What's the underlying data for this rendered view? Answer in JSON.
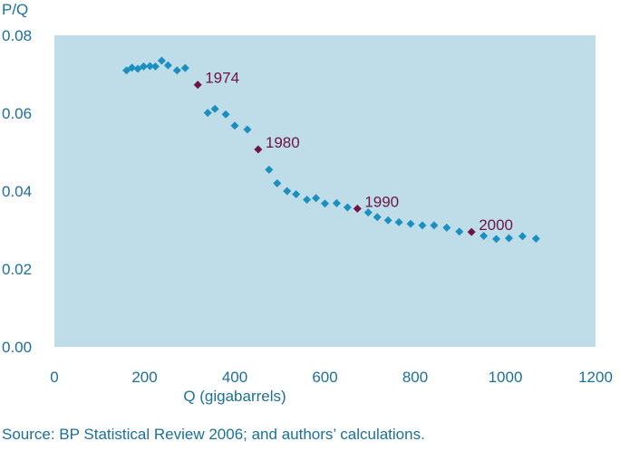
{
  "chart_data": {
    "type": "scatter",
    "ylabel": "P/Q",
    "xlabel": "Q (gigabarrels)",
    "xlim": [
      0,
      1200
    ],
    "ylim": [
      0,
      0.08
    ],
    "x_ticks": [
      "0",
      "200",
      "400",
      "600",
      "800",
      "1000",
      "1200"
    ],
    "y_ticks": [
      "0.00",
      "0.02",
      "0.04",
      "0.06",
      "0.08"
    ],
    "grid": false,
    "colors": {
      "plot_bg": "#bfdde9",
      "point": "#1b8fbf",
      "highlight": "#6e1446",
      "text": "#1c6f9d"
    },
    "series": [
      {
        "points": [
          [
            160,
            0.071
          ],
          [
            172,
            0.0717
          ],
          [
            185,
            0.0714
          ],
          [
            198,
            0.072
          ],
          [
            212,
            0.0721
          ],
          [
            224,
            0.072
          ],
          [
            238,
            0.0735
          ],
          [
            252,
            0.0723
          ],
          [
            272,
            0.071
          ],
          [
            290,
            0.0716
          ],
          [
            340,
            0.0601
          ],
          [
            356,
            0.0611
          ],
          [
            380,
            0.0597
          ],
          [
            400,
            0.0568
          ],
          [
            428,
            0.0558
          ],
          [
            476,
            0.0455
          ],
          [
            494,
            0.042
          ],
          [
            516,
            0.04
          ],
          [
            536,
            0.0392
          ],
          [
            560,
            0.0378
          ],
          [
            580,
            0.0382
          ],
          [
            600,
            0.0368
          ],
          [
            626,
            0.0369
          ],
          [
            650,
            0.0358
          ],
          [
            696,
            0.0345
          ],
          [
            716,
            0.0333
          ],
          [
            740,
            0.0325
          ],
          [
            764,
            0.032
          ],
          [
            790,
            0.0316
          ],
          [
            816,
            0.0312
          ],
          [
            842,
            0.0312
          ],
          [
            870,
            0.0306
          ],
          [
            898,
            0.0296
          ],
          [
            952,
            0.0285
          ],
          [
            980,
            0.0277
          ],
          [
            1008,
            0.0279
          ],
          [
            1038,
            0.0284
          ],
          [
            1068,
            0.0278
          ]
        ]
      }
    ],
    "highlights": [
      {
        "label": "1974",
        "x": 318,
        "y": 0.0673
      },
      {
        "label": "1980",
        "x": 452,
        "y": 0.0507
      },
      {
        "label": "1990",
        "x": 672,
        "y": 0.0355
      },
      {
        "label": "2000",
        "x": 925,
        "y": 0.0295
      }
    ]
  },
  "source_note": "Source: BP Statistical Review 2006; and authors’ calculations."
}
